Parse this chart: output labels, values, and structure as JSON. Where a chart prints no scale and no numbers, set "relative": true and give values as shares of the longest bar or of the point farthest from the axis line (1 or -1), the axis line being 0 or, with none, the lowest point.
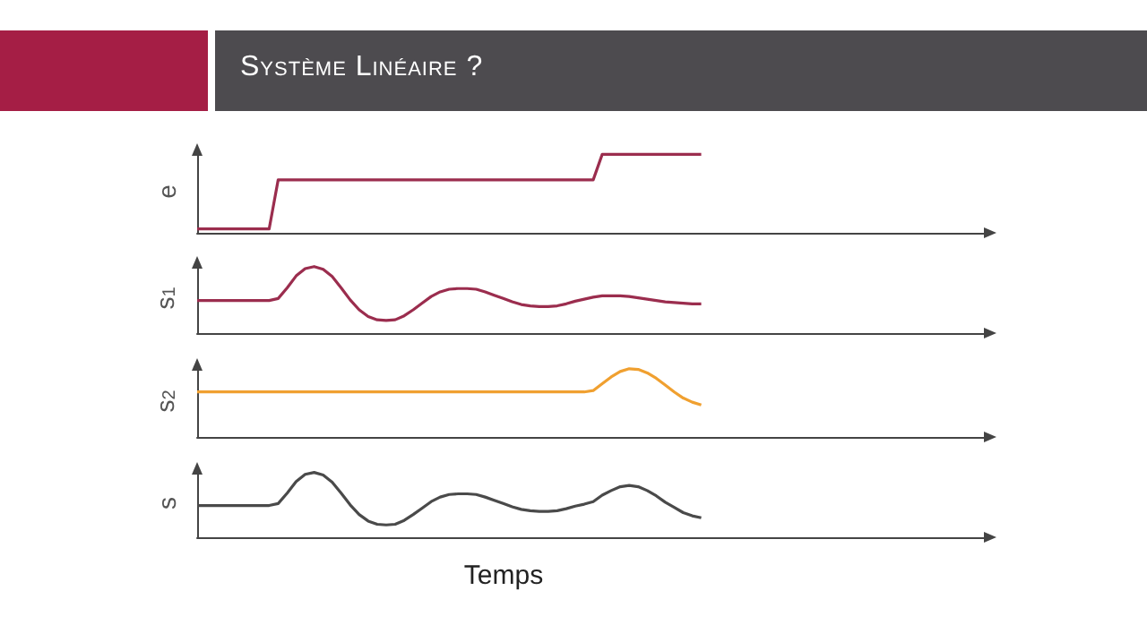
{
  "chart_data": [
    {
      "type": "line",
      "title": "Système Linéaire ?",
      "ylabel": "e",
      "relative": true,
      "tick_labels": false,
      "categories": [
        null,
        null,
        null,
        null,
        null,
        null,
        null,
        null,
        null,
        null,
        null,
        null,
        null,
        null,
        null,
        null,
        null,
        null,
        null,
        null,
        null,
        null,
        null,
        null,
        null,
        null,
        null,
        null,
        null,
        null,
        null,
        null,
        null,
        null,
        null,
        null,
        null,
        null,
        null,
        null,
        null,
        null,
        null,
        null,
        null,
        null,
        null,
        null,
        null,
        null,
        null,
        null,
        null,
        null,
        null,
        null,
        null,
        null,
        null,
        null,
        null,
        null,
        null,
        null,
        null,
        null,
        null,
        null,
        null,
        null,
        null,
        null,
        null,
        null,
        null,
        null,
        null,
        null,
        null,
        null,
        null,
        null,
        null,
        null,
        null,
        null,
        null,
        null,
        null
      ],
      "series": [
        {
          "color": "#9b2d4e",
          "values": [
            0.05,
            0.05,
            0.05,
            0.05,
            0.05,
            0.05,
            0.05,
            0.05,
            0.05,
            0.675,
            0.675,
            0.675,
            0.675,
            0.675,
            0.675,
            0.675,
            0.675,
            0.675,
            0.675,
            0.675,
            0.675,
            0.675,
            0.675,
            0.675,
            0.675,
            0.675,
            0.675,
            0.675,
            0.675,
            0.675,
            0.675,
            0.675,
            0.675,
            0.675,
            0.675,
            0.675,
            0.675,
            0.675,
            0.675,
            0.675,
            0.675,
            0.675,
            0.675,
            0.675,
            0.675,
            1,
            1,
            1,
            1,
            1,
            1,
            1,
            1,
            1,
            1,
            1,
            1,
            null,
            null,
            null,
            null,
            null,
            null,
            null,
            null,
            null,
            null,
            null,
            null,
            null,
            null,
            null,
            null,
            null,
            null,
            null,
            null,
            null,
            null,
            null,
            null,
            null,
            null,
            null,
            null,
            null,
            null,
            null,
            null
          ]
        }
      ]
    },
    {
      "type": "line",
      "ylabel": "s$_{1}$",
      "relative": true,
      "tick_labels": false,
      "categories": [
        null,
        null,
        null,
        null,
        null,
        null,
        null,
        null,
        null,
        null,
        null,
        null,
        null,
        null,
        null,
        null,
        null,
        null,
        null,
        null,
        null,
        null,
        null,
        null,
        null,
        null,
        null,
        null,
        null,
        null,
        null,
        null,
        null,
        null,
        null,
        null,
        null,
        null,
        null,
        null,
        null,
        null,
        null,
        null,
        null,
        null,
        null,
        null,
        null,
        null,
        null,
        null,
        null,
        null,
        null,
        null,
        null,
        null,
        null,
        null,
        null,
        null,
        null,
        null,
        null,
        null,
        null,
        null,
        null,
        null,
        null,
        null,
        null,
        null,
        null,
        null,
        null,
        null,
        null,
        null,
        null,
        null,
        null,
        null,
        null,
        null,
        null,
        null,
        null
      ],
      "series": [
        {
          "color": "#9b2d4e",
          "values": [
            0.49,
            0.49,
            0.49,
            0.49,
            0.49,
            0.49,
            0.49,
            0.49,
            0.49,
            0.52,
            0.68,
            0.86,
            0.97,
            1,
            0.96,
            0.85,
            0.68,
            0.5,
            0.35,
            0.25,
            0.2,
            0.19,
            0.2,
            0.26,
            0.35,
            0.45,
            0.55,
            0.62,
            0.66,
            0.67,
            0.67,
            0.66,
            0.62,
            0.57,
            0.52,
            0.47,
            0.43,
            0.41,
            0.4,
            0.4,
            0.41,
            0.44,
            0.48,
            0.51,
            0.54,
            0.56,
            0.56,
            0.56,
            0.55,
            0.53,
            0.51,
            0.49,
            0.47,
            0.46,
            0.45,
            0.44,
            0.44,
            null,
            null,
            null,
            null,
            null,
            null,
            null,
            null,
            null,
            null,
            null,
            null,
            null,
            null,
            null,
            null,
            null,
            null,
            null,
            null,
            null,
            null,
            null,
            null,
            null,
            null,
            null,
            null,
            null,
            null,
            null,
            null
          ]
        }
      ]
    },
    {
      "type": "line",
      "ylabel": "s$_{2}$",
      "relative": true,
      "tick_labels": false,
      "categories": [
        null,
        null,
        null,
        null,
        null,
        null,
        null,
        null,
        null,
        null,
        null,
        null,
        null,
        null,
        null,
        null,
        null,
        null,
        null,
        null,
        null,
        null,
        null,
        null,
        null,
        null,
        null,
        null,
        null,
        null,
        null,
        null,
        null,
        null,
        null,
        null,
        null,
        null,
        null,
        null,
        null,
        null,
        null,
        null,
        null,
        null,
        null,
        null,
        null,
        null,
        null,
        null,
        null,
        null,
        null,
        null,
        null,
        null,
        null,
        null,
        null,
        null,
        null,
        null,
        null,
        null,
        null,
        null,
        null,
        null,
        null,
        null,
        null,
        null,
        null,
        null,
        null,
        null,
        null,
        null,
        null,
        null,
        null,
        null,
        null,
        null,
        null,
        null,
        null
      ],
      "series": [
        {
          "color": "#f0a030",
          "values": [
            0.66,
            0.66,
            0.66,
            0.66,
            0.66,
            0.66,
            0.66,
            0.66,
            0.66,
            0.66,
            0.66,
            0.66,
            0.66,
            0.66,
            0.66,
            0.66,
            0.66,
            0.66,
            0.66,
            0.66,
            0.66,
            0.66,
            0.66,
            0.66,
            0.66,
            0.66,
            0.66,
            0.66,
            0.66,
            0.66,
            0.66,
            0.66,
            0.66,
            0.66,
            0.66,
            0.66,
            0.66,
            0.66,
            0.66,
            0.66,
            0.66,
            0.66,
            0.66,
            0.66,
            0.68,
            0.78,
            0.88,
            0.96,
            1,
            0.99,
            0.94,
            0.86,
            0.76,
            0.66,
            0.57,
            0.51,
            0.47,
            null,
            null,
            null,
            null,
            null,
            null,
            null,
            null,
            null,
            null,
            null,
            null,
            null,
            null,
            null,
            null,
            null,
            null,
            null,
            null,
            null,
            null,
            null,
            null,
            null,
            null,
            null,
            null,
            null,
            null,
            null,
            null
          ]
        }
      ]
    },
    {
      "type": "line",
      "ylabel": "s",
      "xlabel": "Temps",
      "relative": true,
      "tick_labels": false,
      "categories": [
        null,
        null,
        null,
        null,
        null,
        null,
        null,
        null,
        null,
        null,
        null,
        null,
        null,
        null,
        null,
        null,
        null,
        null,
        null,
        null,
        null,
        null,
        null,
        null,
        null,
        null,
        null,
        null,
        null,
        null,
        null,
        null,
        null,
        null,
        null,
        null,
        null,
        null,
        null,
        null,
        null,
        null,
        null,
        null,
        null,
        null,
        null,
        null,
        null,
        null,
        null,
        null,
        null,
        null,
        null,
        null,
        null,
        null,
        null,
        null,
        null,
        null,
        null,
        null,
        null,
        null,
        null,
        null,
        null,
        null,
        null,
        null,
        null,
        null,
        null,
        null,
        null,
        null,
        null,
        null,
        null,
        null,
        null,
        null,
        null,
        null,
        null,
        null,
        null
      ],
      "series": [
        {
          "color": "#4a4a4a",
          "values": [
            0.49,
            0.49,
            0.49,
            0.49,
            0.49,
            0.49,
            0.49,
            0.49,
            0.49,
            0.52,
            0.68,
            0.86,
            0.97,
            1,
            0.96,
            0.85,
            0.68,
            0.5,
            0.35,
            0.25,
            0.2,
            0.19,
            0.2,
            0.26,
            0.35,
            0.45,
            0.55,
            0.62,
            0.66,
            0.67,
            0.67,
            0.66,
            0.62,
            0.57,
            0.52,
            0.47,
            0.43,
            0.41,
            0.4,
            0.4,
            0.41,
            0.44,
            0.48,
            0.51,
            0.55,
            0.65,
            0.72,
            0.78,
            0.8,
            0.78,
            0.72,
            0.64,
            0.54,
            0.46,
            0.38,
            0.33,
            0.3,
            null,
            null,
            null,
            null,
            null,
            null,
            null,
            null,
            null,
            null,
            null,
            null,
            null,
            null,
            null,
            null,
            null,
            null,
            null,
            null,
            null,
            null,
            null,
            null,
            null,
            null,
            null,
            null,
            null,
            null,
            null,
            null
          ]
        }
      ]
    }
  ]
}
